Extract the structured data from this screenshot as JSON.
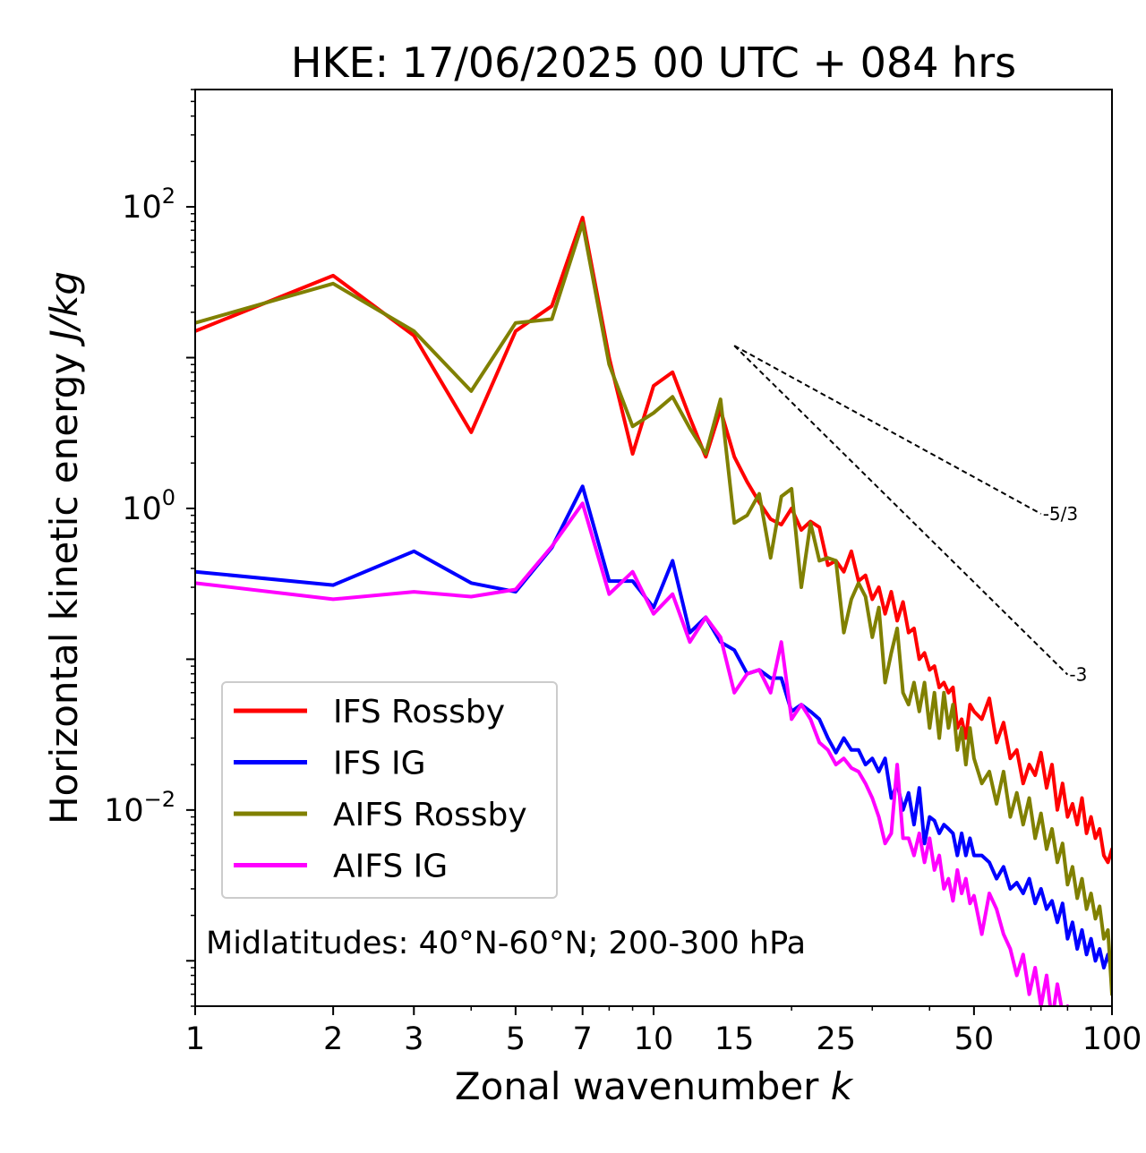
{
  "chart_data": {
    "type": "line",
    "title": "HKE: 17/06/2025 00 UTC + 084 hrs",
    "xlabel": "Zonal wavenumber",
    "xlabel_var": "k",
    "ylabel": "Horizontal kinetic energy",
    "ylabel_unit": "J/kg",
    "xscale": "log",
    "yscale": "log",
    "xlim": [
      1,
      100
    ],
    "ylim": [
      0.0005,
      600
    ],
    "grid": false,
    "legend_position": "lower-left",
    "annotation": "Midlatitudes: 40°N-60°N; 200-300 hPa",
    "x_ticks": [
      {
        "value": 1,
        "label": "1"
      },
      {
        "value": 2,
        "label": "2"
      },
      {
        "value": 3,
        "label": "3"
      },
      {
        "value": 5,
        "label": "5"
      },
      {
        "value": 7,
        "label": "7"
      },
      {
        "value": 10,
        "label": "10"
      },
      {
        "value": 15,
        "label": "15"
      },
      {
        "value": 25,
        "label": "25"
      },
      {
        "value": 50,
        "label": "50"
      },
      {
        "value": 100,
        "label": "100"
      }
    ],
    "y_ticks": [
      {
        "value": 100,
        "base": "10",
        "exp": "2"
      },
      {
        "value": 1,
        "base": "10",
        "exp": "0"
      },
      {
        "value": 0.01,
        "base": "10",
        "exp": "−2"
      }
    ],
    "reference_slopes": [
      {
        "label": "-5/3",
        "slope": -1.6667,
        "x": [
          15,
          70
        ],
        "y_start": 12.0
      },
      {
        "label": "-3",
        "slope": -3,
        "x": [
          15,
          80
        ],
        "y_start": 12.0
      }
    ],
    "series": [
      {
        "name": "IFS Rossby",
        "color": "#ff0000",
        "x": [
          1,
          2,
          3,
          4,
          5,
          6,
          7,
          8,
          9,
          10,
          11,
          12,
          13,
          14,
          15,
          16,
          17,
          18,
          19,
          20,
          21,
          22,
          23,
          24,
          25,
          26,
          27,
          28,
          29,
          30,
          31,
          32,
          33,
          34,
          35,
          36,
          37,
          38,
          39,
          40,
          41,
          42,
          43,
          44,
          45,
          46,
          47,
          48,
          49,
          50,
          52,
          54,
          56,
          58,
          60,
          62,
          64,
          66,
          68,
          70,
          72,
          74,
          76,
          78,
          80,
          82,
          84,
          86,
          88,
          90,
          92,
          94,
          96,
          98,
          100
        ],
        "values": [
          15,
          35,
          14,
          3.2,
          15,
          22,
          85,
          10,
          2.3,
          6.5,
          8,
          4,
          2.2,
          4.5,
          2.2,
          1.5,
          1.1,
          0.85,
          0.78,
          1.0,
          0.72,
          0.82,
          0.75,
          0.42,
          0.45,
          0.38,
          0.52,
          0.33,
          0.36,
          0.25,
          0.3,
          0.2,
          0.28,
          0.18,
          0.24,
          0.15,
          0.16,
          0.1,
          0.11,
          0.085,
          0.09,
          0.065,
          0.07,
          0.06,
          0.065,
          0.035,
          0.04,
          0.03,
          0.05,
          0.045,
          0.04,
          0.055,
          0.028,
          0.038,
          0.022,
          0.025,
          0.015,
          0.02,
          0.017,
          0.024,
          0.014,
          0.02,
          0.01,
          0.015,
          0.009,
          0.011,
          0.008,
          0.012,
          0.007,
          0.009,
          0.0065,
          0.0075,
          0.005,
          0.0045,
          0.0055
        ]
      },
      {
        "name": "IFS IG",
        "color": "#0000ff",
        "x": [
          1,
          2,
          3,
          4,
          5,
          6,
          7,
          8,
          9,
          10,
          11,
          12,
          13,
          14,
          15,
          16,
          17,
          18,
          19,
          20,
          21,
          22,
          23,
          24,
          25,
          26,
          27,
          28,
          29,
          30,
          31,
          32,
          33,
          34,
          35,
          36,
          37,
          38,
          39,
          40,
          41,
          42,
          43,
          44,
          45,
          46,
          47,
          48,
          49,
          50,
          52,
          54,
          56,
          58,
          60,
          62,
          64,
          66,
          68,
          70,
          72,
          74,
          76,
          78,
          80,
          82,
          84,
          86,
          88,
          90,
          92,
          94,
          96,
          98,
          100
        ],
        "values": [
          0.38,
          0.31,
          0.52,
          0.32,
          0.28,
          0.55,
          1.4,
          0.33,
          0.33,
          0.22,
          0.45,
          0.15,
          0.19,
          0.13,
          0.115,
          0.08,
          0.085,
          0.075,
          0.075,
          0.045,
          0.05,
          0.045,
          0.04,
          0.03,
          0.024,
          0.03,
          0.025,
          0.025,
          0.02,
          0.022,
          0.018,
          0.022,
          0.012,
          0.015,
          0.01,
          0.013,
          0.008,
          0.014,
          0.006,
          0.009,
          0.0085,
          0.007,
          0.008,
          0.0075,
          0.007,
          0.005,
          0.007,
          0.005,
          0.0065,
          0.005,
          0.005,
          0.0045,
          0.0035,
          0.0042,
          0.003,
          0.0033,
          0.0028,
          0.0035,
          0.0024,
          0.003,
          0.0022,
          0.0025,
          0.0018,
          0.0024,
          0.0014,
          0.0018,
          0.0012,
          0.0016,
          0.0011,
          0.0014,
          0.001,
          0.0012,
          0.0009,
          0.0011,
          0.00085
        ]
      },
      {
        "name": "AIFS Rossby",
        "color": "#808000",
        "x": [
          1,
          2,
          3,
          4,
          5,
          6,
          7,
          8,
          9,
          10,
          11,
          12,
          13,
          14,
          15,
          16,
          17,
          18,
          19,
          20,
          21,
          22,
          23,
          24,
          25,
          26,
          27,
          28,
          29,
          30,
          31,
          32,
          33,
          34,
          35,
          36,
          37,
          38,
          39,
          40,
          41,
          42,
          43,
          44,
          45,
          46,
          47,
          48,
          49,
          50,
          52,
          54,
          56,
          58,
          60,
          62,
          64,
          66,
          68,
          70,
          72,
          74,
          76,
          78,
          80,
          82,
          84,
          86,
          88,
          90,
          92,
          94,
          96,
          98,
          100
        ],
        "values": [
          17,
          31,
          15,
          6,
          17,
          18,
          78,
          9,
          3.5,
          4.3,
          5.5,
          3.4,
          2.3,
          5.3,
          0.8,
          0.9,
          1.25,
          0.47,
          1.2,
          1.35,
          0.3,
          0.8,
          0.45,
          0.47,
          0.45,
          0.15,
          0.25,
          0.32,
          0.26,
          0.14,
          0.22,
          0.07,
          0.11,
          0.16,
          0.06,
          0.05,
          0.07,
          0.045,
          0.07,
          0.035,
          0.06,
          0.03,
          0.06,
          0.035,
          0.05,
          0.025,
          0.035,
          0.02,
          0.035,
          0.022,
          0.015,
          0.018,
          0.011,
          0.018,
          0.009,
          0.013,
          0.008,
          0.012,
          0.0065,
          0.0095,
          0.0055,
          0.0075,
          0.0045,
          0.006,
          0.0032,
          0.0042,
          0.0026,
          0.0035,
          0.0022,
          0.0028,
          0.0019,
          0.0023,
          0.0014,
          0.0016,
          0.0006
        ]
      },
      {
        "name": "AIFS IG",
        "color": "#ff00ff",
        "x": [
          1,
          2,
          3,
          4,
          5,
          6,
          7,
          8,
          9,
          10,
          11,
          12,
          13,
          14,
          15,
          16,
          17,
          18,
          19,
          20,
          21,
          22,
          23,
          24,
          25,
          26,
          27,
          28,
          29,
          30,
          31,
          32,
          33,
          34,
          35,
          36,
          37,
          38,
          39,
          40,
          41,
          42,
          43,
          44,
          45,
          46,
          47,
          48,
          49,
          50,
          52,
          54,
          56,
          58,
          60,
          62,
          64,
          66,
          68,
          70,
          72,
          74,
          76,
          78,
          80
        ],
        "values": [
          0.32,
          0.25,
          0.28,
          0.26,
          0.29,
          0.56,
          1.08,
          0.27,
          0.38,
          0.2,
          0.27,
          0.13,
          0.19,
          0.14,
          0.06,
          0.08,
          0.085,
          0.06,
          0.13,
          0.04,
          0.05,
          0.04,
          0.028,
          0.025,
          0.02,
          0.022,
          0.019,
          0.018,
          0.015,
          0.012,
          0.009,
          0.006,
          0.007,
          0.02,
          0.0065,
          0.0065,
          0.005,
          0.007,
          0.0045,
          0.0065,
          0.004,
          0.005,
          0.003,
          0.0035,
          0.0025,
          0.004,
          0.0028,
          0.0035,
          0.0024,
          0.0027,
          0.0015,
          0.0028,
          0.0022,
          0.0015,
          0.0012,
          0.0008,
          0.0011,
          0.0006,
          0.0009,
          0.0005,
          0.0008,
          0.0004,
          0.0007,
          0.00045,
          0.0005
        ]
      }
    ]
  }
}
